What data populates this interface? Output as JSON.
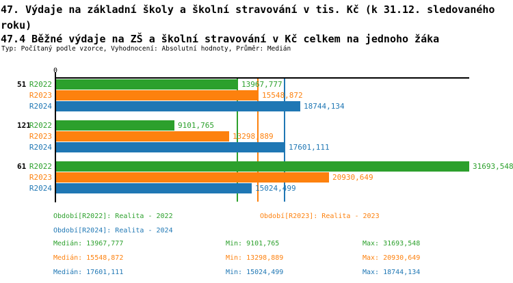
{
  "header": {
    "title": "47. Výdaje na základní školy a školní stravování v tis. Kč (k 31.12. sledovaného roku)",
    "subtitle": "47.4 Běžné výdaje na ZŠ a školní stravování v Kč celkem na jednoho žáka",
    "meta": "Typ: Počítaný podle vzorce, Vyhodnocení: Absolutní hodnoty, Průměr: Medián"
  },
  "palette": {
    "green": "#2ca02c",
    "orange": "#fd810e",
    "blue": "#1f77b4",
    "axis": "#000000",
    "background": "#ffffff"
  },
  "chart_data": {
    "type": "bar",
    "orientation": "horizontal",
    "x_origin_label": "0",
    "xlim": [
      0,
      31693.548
    ],
    "grid": "median-reference-lines-only",
    "legend_position": "bottom",
    "categories": [
      "51",
      "121",
      "61"
    ],
    "series": [
      {
        "name": "R2022",
        "color": "green",
        "values": [
          13967.777,
          9101.765,
          31693.548
        ],
        "labels": [
          "13967,777",
          "9101,765",
          "31693,548"
        ]
      },
      {
        "name": "R2023",
        "color": "orange",
        "values": [
          15548.872,
          13298.889,
          20930.649
        ],
        "labels": [
          "15548,872",
          "13298,889",
          "20930,649"
        ]
      },
      {
        "name": "R2024",
        "color": "blue",
        "values": [
          18744.134,
          17601.111,
          15024.499
        ],
        "labels": [
          "18744,134",
          "17601,111",
          "15024,499"
        ]
      }
    ],
    "median_lines": [
      {
        "series": "R2022",
        "value": 13967.777,
        "color": "green"
      },
      {
        "series": "R2023",
        "value": 15548.872,
        "color": "orange"
      },
      {
        "series": "R2024",
        "value": 17601.111,
        "color": "blue"
      }
    ]
  },
  "legend": [
    {
      "label": "Období[R2022]: Realita - 2022",
      "color": "green"
    },
    {
      "label": "Období[R2023]: Realita - 2023",
      "color": "orange"
    },
    {
      "label": "Období[R2024]: Realita - 2024",
      "color": "blue"
    }
  ],
  "stats": [
    {
      "color": "green",
      "median": "Medián: 13967,777",
      "min": "Min: 9101,765",
      "max": "Max: 31693,548"
    },
    {
      "color": "orange",
      "median": "Medián: 15548,872",
      "min": "Min: 13298,889",
      "max": "Max: 20930,649"
    },
    {
      "color": "blue",
      "median": "Medián: 17601,111",
      "min": "Min: 15024,499",
      "max": "Max: 18744,134"
    }
  ]
}
